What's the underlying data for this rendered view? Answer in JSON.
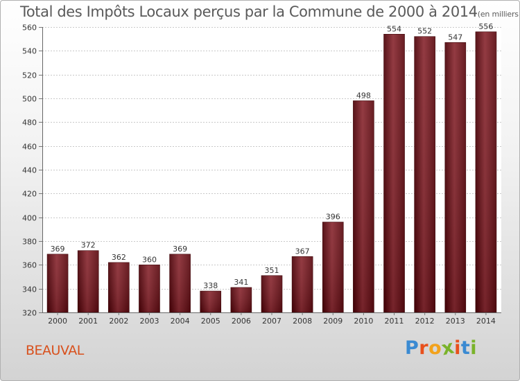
{
  "chart_data": {
    "type": "bar",
    "title": "Total des Impôts Locaux perçus par la Commune de 2000 à 2014",
    "unit": "(en milliers d'€)",
    "categories": [
      "2000",
      "2001",
      "2002",
      "2003",
      "2004",
      "2005",
      "2006",
      "2007",
      "2008",
      "2009",
      "2010",
      "2011",
      "2012",
      "2013",
      "2014"
    ],
    "values": [
      369,
      372,
      362,
      360,
      369,
      338,
      341,
      351,
      367,
      396,
      498,
      554,
      552,
      547,
      556
    ],
    "ylim": [
      320,
      560
    ],
    "ytick_step": 20,
    "xlabel": "",
    "ylabel": "",
    "grid": true,
    "bar_color": "#6b1018"
  },
  "footer": {
    "commune": "BEAUVAL",
    "logo_text": "Proxiti",
    "logo_colors": [
      "#3a8ad2",
      "#e8501c",
      "#f2a21c",
      "#7ab32a",
      "#e8501c",
      "#3a8ad2",
      "#7ab32a"
    ]
  }
}
